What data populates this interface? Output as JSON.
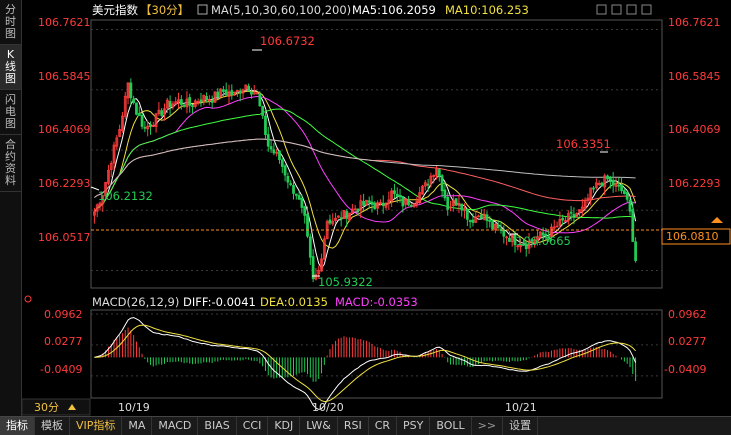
{
  "sidebar": {
    "tabs": [
      {
        "label": "分时图",
        "active": false
      },
      {
        "label": "K线图",
        "active": true
      },
      {
        "label": "闪电图",
        "active": false
      },
      {
        "label": "合约资料",
        "active": false
      }
    ]
  },
  "header": {
    "symbol": "美元指数",
    "period": "【30分】",
    "ma_label": "MA(5,10,30,60,100,200)",
    "ma5": "MA5:106.2059",
    "ma10": "MA10:106.253"
  },
  "macd_header": {
    "label": "MACD(26,12,9)",
    "diff": "DIFF:-0.0041",
    "dea": "DEA:0.0135",
    "macd": "MACD:-0.0353"
  },
  "price_axis": {
    "ticks": [
      "106.7621",
      "106.5845",
      "106.4069",
      "106.2293",
      "106.0517"
    ],
    "current_price": "106.0810"
  },
  "annotations": {
    "high": "106.6732",
    "low": "105.9322",
    "left_low": "106.2132",
    "right_high": "106.3351",
    "right_low": "106.0665"
  },
  "macd_axis": {
    "ticks": [
      "0.0962",
      "0.0277",
      "-0.0409"
    ]
  },
  "time_axis": {
    "period_button": "30分",
    "labels": [
      "10/19",
      "10/20",
      "10/21"
    ]
  },
  "bottom_tabs": [
    "指标",
    "模板",
    "VIP指标",
    "MA",
    "MACD",
    "BIAS",
    "CCI",
    "KDJ",
    "LW&",
    "RSI",
    "CR",
    "PSY",
    "BOLL",
    ">>",
    "设置"
  ],
  "colors": {
    "up": "#ff3b3b",
    "down": "#22cc55",
    "ma5": "#ffffff",
    "ma10": "#f0e040",
    "ma30": "#ff40ff",
    "ma60": "#40ff40",
    "ma100": "#ff6060",
    "ma200": "#c0c0c0",
    "axis_text": "#ff3b3b",
    "grid": "#3a3a3a"
  },
  "chart_data": {
    "type": "candlestick",
    "title": "美元指数",
    "xlabel": "",
    "ylabel": "",
    "ylim": [
      106.0,
      106.79
    ],
    "x_labels": [
      "10/19",
      "10/20",
      "10/21"
    ],
    "keypoints": [
      {
        "i": 0,
        "c": 106.225
      },
      {
        "i": 3,
        "c": 106.28
      },
      {
        "i": 6,
        "c": 106.38
      },
      {
        "i": 9,
        "c": 106.47
      },
      {
        "i": 12,
        "c": 106.6
      },
      {
        "i": 15,
        "c": 106.52
      },
      {
        "i": 18,
        "c": 106.47
      },
      {
        "i": 22,
        "c": 106.5
      },
      {
        "i": 26,
        "c": 106.54
      },
      {
        "i": 30,
        "c": 106.55
      },
      {
        "i": 34,
        "c": 106.54
      },
      {
        "i": 38,
        "c": 106.56
      },
      {
        "i": 42,
        "c": 106.56
      },
      {
        "i": 46,
        "c": 106.58
      },
      {
        "i": 50,
        "c": 106.57
      },
      {
        "i": 54,
        "c": 106.6
      },
      {
        "i": 58,
        "c": 106.57
      },
      {
        "i": 62,
        "c": 106.42
      },
      {
        "i": 66,
        "c": 106.38
      },
      {
        "i": 70,
        "c": 106.3
      },
      {
        "i": 72,
        "c": 106.28
      },
      {
        "i": 75,
        "c": 106.2
      },
      {
        "i": 78,
        "c": 106.02
      },
      {
        "i": 80,
        "c": 106.05
      },
      {
        "i": 83,
        "c": 106.2
      },
      {
        "i": 86,
        "c": 106.2
      },
      {
        "i": 90,
        "c": 106.22
      },
      {
        "i": 94,
        "c": 106.24
      },
      {
        "i": 98,
        "c": 106.25
      },
      {
        "i": 102,
        "c": 106.24
      },
      {
        "i": 106,
        "c": 106.28
      },
      {
        "i": 110,
        "c": 106.25
      },
      {
        "i": 114,
        "c": 106.26
      },
      {
        "i": 118,
        "c": 106.3
      },
      {
        "i": 122,
        "c": 106.36
      },
      {
        "i": 126,
        "c": 106.24
      },
      {
        "i": 130,
        "c": 106.26
      },
      {
        "i": 134,
        "c": 106.2
      },
      {
        "i": 138,
        "c": 106.22
      },
      {
        "i": 142,
        "c": 106.18
      },
      {
        "i": 146,
        "c": 106.16
      },
      {
        "i": 150,
        "c": 106.14
      },
      {
        "i": 154,
        "c": 106.13
      },
      {
        "i": 158,
        "c": 106.15
      },
      {
        "i": 162,
        "c": 106.16
      },
      {
        "i": 166,
        "c": 106.19
      },
      {
        "i": 170,
        "c": 106.21
      },
      {
        "i": 174,
        "c": 106.23
      },
      {
        "i": 177,
        "c": 106.28
      },
      {
        "i": 180,
        "c": 106.31
      },
      {
        "i": 183,
        "c": 106.32
      },
      {
        "i": 186,
        "c": 106.3
      },
      {
        "i": 189,
        "c": 106.28
      },
      {
        "i": 191,
        "c": 106.22
      },
      {
        "i": 193,
        "c": 106.081
      }
    ],
    "n_candles": 194,
    "ma_series": [
      {
        "name": "MA5",
        "color": "#ffffff"
      },
      {
        "name": "MA10",
        "color": "#f0e040"
      },
      {
        "name": "MA30",
        "color": "#ff40ff"
      },
      {
        "name": "MA60",
        "color": "#40ff40"
      },
      {
        "name": "MA100",
        "color": "#ff6060"
      },
      {
        "name": "MA200",
        "color": "#c0c0c0"
      }
    ],
    "macd": {
      "diff": -0.0041,
      "dea": 0.0135,
      "macd": -0.0353,
      "ylim": [
        -0.09,
        0.105
      ]
    }
  }
}
